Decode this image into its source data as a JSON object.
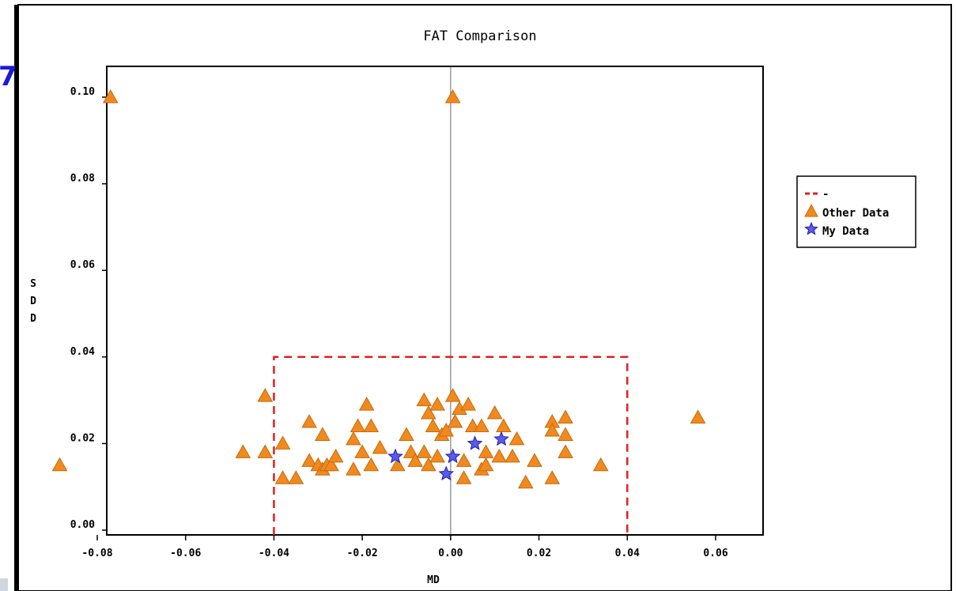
{
  "chart_data": {
    "type": "scatter",
    "title": "FAT Comparison",
    "xlabel": "MD",
    "ylabel": "SDD",
    "xlim": [
      -0.085,
      0.07
    ],
    "ylim": [
      0.0,
      0.108
    ],
    "x_ticks": [
      -0.08,
      -0.06,
      -0.04,
      -0.02,
      0.0,
      0.02,
      0.04,
      0.06
    ],
    "x_tick_labels": [
      "-0.08",
      "-0.06",
      "-0.04",
      "-0.02",
      "0.00",
      "0.02",
      "0.04",
      "0.06"
    ],
    "y_ticks": [
      0.0,
      0.02,
      0.04,
      0.06,
      0.08,
      0.1
    ],
    "y_tick_labels": [
      "0.00",
      "0.02",
      "0.04",
      "0.06",
      "0.08",
      "0.10"
    ],
    "grid": false,
    "legend_position": "right",
    "reference_line_x": 0.0,
    "limit_box": {
      "x": [
        -0.04,
        0.04
      ],
      "y": [
        0.0,
        0.04
      ],
      "color": "#e02020"
    },
    "legend": [
      {
        "label": "-",
        "marker": "dashed-line",
        "color": "#e02020"
      },
      {
        "label": "Other Data",
        "marker": "triangle",
        "color": "#f08a1e"
      },
      {
        "label": "My Data",
        "marker": "star",
        "color": "#4848e0"
      }
    ],
    "series": [
      {
        "name": "Other Data",
        "marker": "triangle",
        "color": "#f08a1e",
        "points": [
          [
            -0.077,
            0.1
          ],
          [
            0.0005,
            0.1
          ],
          [
            -0.0885,
            0.015
          ],
          [
            -0.047,
            0.018
          ],
          [
            -0.042,
            0.018
          ],
          [
            -0.042,
            0.031
          ],
          [
            -0.038,
            0.02
          ],
          [
            -0.038,
            0.012
          ],
          [
            -0.035,
            0.012
          ],
          [
            -0.032,
            0.025
          ],
          [
            -0.032,
            0.016
          ],
          [
            -0.03,
            0.015
          ],
          [
            -0.029,
            0.022
          ],
          [
            -0.029,
            0.014
          ],
          [
            -0.028,
            0.015
          ],
          [
            -0.027,
            0.015
          ],
          [
            -0.026,
            0.017
          ],
          [
            -0.022,
            0.021
          ],
          [
            -0.022,
            0.014
          ],
          [
            -0.021,
            0.024
          ],
          [
            -0.02,
            0.018
          ],
          [
            -0.019,
            0.029
          ],
          [
            -0.018,
            0.024
          ],
          [
            -0.018,
            0.015
          ],
          [
            -0.016,
            0.019
          ],
          [
            -0.012,
            0.015
          ],
          [
            -0.01,
            0.022
          ],
          [
            -0.009,
            0.018
          ],
          [
            -0.008,
            0.016
          ],
          [
            -0.006,
            0.03
          ],
          [
            -0.006,
            0.018
          ],
          [
            -0.005,
            0.027
          ],
          [
            -0.005,
            0.015
          ],
          [
            -0.004,
            0.024
          ],
          [
            -0.003,
            0.029
          ],
          [
            -0.003,
            0.017
          ],
          [
            -0.002,
            0.022
          ],
          [
            -0.001,
            0.023
          ],
          [
            0.0005,
            0.031
          ],
          [
            0.001,
            0.025
          ],
          [
            0.002,
            0.028
          ],
          [
            0.003,
            0.012
          ],
          [
            0.003,
            0.016
          ],
          [
            0.004,
            0.029
          ],
          [
            0.005,
            0.024
          ],
          [
            0.007,
            0.024
          ],
          [
            0.007,
            0.014
          ],
          [
            0.008,
            0.018
          ],
          [
            0.008,
            0.015
          ],
          [
            0.01,
            0.027
          ],
          [
            0.011,
            0.017
          ],
          [
            0.012,
            0.024
          ],
          [
            0.014,
            0.017
          ],
          [
            0.015,
            0.021
          ],
          [
            0.017,
            0.011
          ],
          [
            0.019,
            0.016
          ],
          [
            0.023,
            0.025
          ],
          [
            0.023,
            0.023
          ],
          [
            0.023,
            0.012
          ],
          [
            0.026,
            0.026
          ],
          [
            0.026,
            0.022
          ],
          [
            0.026,
            0.018
          ],
          [
            0.034,
            0.015
          ],
          [
            0.056,
            0.026
          ]
        ]
      },
      {
        "name": "My Data",
        "marker": "star",
        "color": "#4848e0",
        "points": [
          [
            -0.0125,
            0.017
          ],
          [
            -0.001,
            0.013
          ],
          [
            0.0005,
            0.017
          ],
          [
            0.0055,
            0.02
          ],
          [
            0.0115,
            0.021
          ]
        ]
      }
    ]
  },
  "colors": {
    "triangle_fill": "#f08a1e",
    "triangle_stroke": "#c86a0c",
    "star_fill": "#5a5af0",
    "star_stroke": "#2020a0",
    "box": "#e02020",
    "zero_line": "#999999",
    "frame": "#000000"
  },
  "overlay": {
    "left_edge_glyph": "7"
  }
}
